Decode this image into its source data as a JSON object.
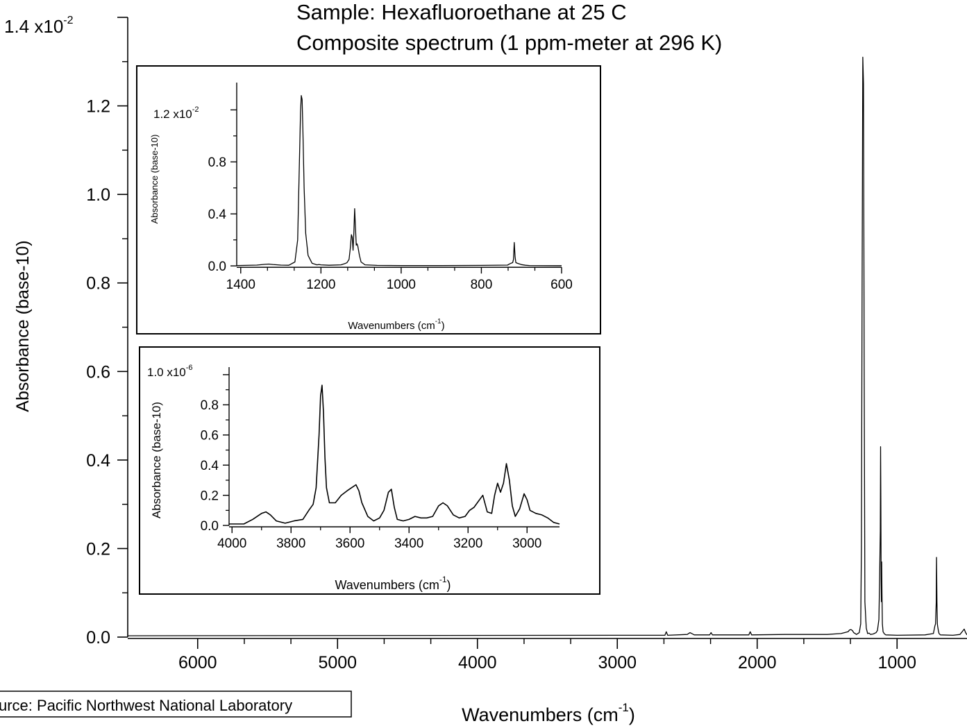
{
  "header": {
    "title_line1": "Sample:  Hexafluoroethane at 25 C",
    "title_line2": "Composite spectrum (1 ppm-meter at 296 K)"
  },
  "source_note": "urce: Pacific Northwest National Laboratory",
  "chart_data": [
    {
      "id": "main",
      "type": "line",
      "xlabel_main": "Wavenumbers (cm",
      "xlabel_sup": "-1",
      "xlabel_close": ")",
      "ylabel": "Absorbance (base-10)",
      "y_multiplier_label": "1.4 x10",
      "y_multiplier_exp": "-2",
      "xlim": [
        6500,
        500
      ],
      "ylim": [
        0,
        0.014
      ],
      "x_ticks": [
        6000,
        5000,
        4000,
        3000,
        2000,
        1000
      ],
      "y_ticks": [
        0.0,
        0.2,
        0.4,
        0.6,
        0.8,
        1.0,
        1.2
      ],
      "y_tick_labels": [
        "0.0",
        "0.2",
        "0.4",
        "0.6",
        "0.8",
        "1.0",
        "1.2"
      ],
      "y_tick_scale": 0.01,
      "series": [
        {
          "x": [
            6500,
            3000,
            2660,
            2650,
            2640,
            2500,
            2480,
            2450,
            2340,
            2330,
            2320,
            2060,
            2050,
            2040,
            1800,
            1500,
            1400,
            1350,
            1340,
            1330,
            1320,
            1310,
            1290,
            1270,
            1260,
            1255,
            1250,
            1245,
            1240,
            1235,
            1230,
            1220,
            1210,
            1200,
            1190,
            1170,
            1150,
            1140,
            1130,
            1125,
            1120,
            1118,
            1116,
            1114,
            1112,
            1110,
            1108,
            1105,
            1100,
            1090,
            1080,
            1000,
            800,
            740,
            730,
            725,
            720,
            718,
            715,
            712,
            710,
            705,
            700,
            690,
            600,
            550,
            520,
            510,
            500
          ],
          "y": [
            3e-05,
            4e-05,
            4e-05,
            0.00012,
            4e-05,
            6e-05,
            0.0001,
            5e-05,
            5e-05,
            0.0001,
            5e-05,
            5e-05,
            0.00012,
            5e-05,
            6e-05,
            6e-05,
            8e-05,
            0.00012,
            0.00016,
            0.00017,
            0.00015,
            0.0001,
            6e-05,
            0.0001,
            0.0003,
            0.002,
            0.008,
            0.0131,
            0.0125,
            0.006,
            0.0008,
            0.0002,
            8e-05,
            9e-05,
            6e-05,
            7e-05,
            0.0001,
            0.00015,
            0.0004,
            0.0013,
            0.0024,
            0.0043,
            0.0031,
            0.0013,
            0.0008,
            0.0017,
            0.001,
            0.0003,
            0.00012,
            7e-05,
            5e-05,
            4e-05,
            5e-05,
            8e-05,
            0.00025,
            0.0003,
            0.0008,
            0.0018,
            0.0008,
            0.0003,
            0.00025,
            0.00015,
            8e-05,
            5e-05,
            4e-05,
            6e-05,
            0.00018,
            0.0001,
            5e-05
          ]
        }
      ]
    },
    {
      "id": "inset-top",
      "type": "line",
      "xlabel_main": "Wavenumbers (cm",
      "xlabel_sup": "-1",
      "xlabel_close": ")",
      "ylabel": "Absorbance (base-10)",
      "y_multiplier_label": "1.2 x10",
      "y_multiplier_exp": "-2",
      "xlim": [
        1410,
        600
      ],
      "ylim": [
        -0.0001,
        0.0141
      ],
      "x_ticks": [
        1400,
        1200,
        1000,
        800,
        600
      ],
      "y_ticks": [
        0.0,
        0.4,
        0.8
      ],
      "y_tick_labels": [
        "0.0",
        "0.4",
        "0.8"
      ],
      "y_tick_scale": 0.01,
      "series": [
        {
          "x": [
            1410,
            1360,
            1340,
            1330,
            1320,
            1300,
            1280,
            1265,
            1258,
            1254,
            1251,
            1249,
            1247,
            1245,
            1242,
            1238,
            1232,
            1222,
            1210,
            1205,
            1200,
            1180,
            1150,
            1140,
            1135,
            1130,
            1127,
            1124,
            1122,
            1120,
            1118,
            1116,
            1114,
            1112,
            1110,
            1108,
            1104,
            1100,
            1090,
            1060,
            1000,
            900,
            800,
            735,
            728,
            722,
            720,
            718,
            716,
            714,
            710,
            700,
            690,
            680,
            600
          ],
          "y": [
            3e-05,
            6e-05,
            0.00012,
            0.00014,
            0.00011,
            6e-05,
            5e-05,
            0.0003,
            0.002,
            0.0075,
            0.0118,
            0.0131,
            0.0128,
            0.0105,
            0.006,
            0.0025,
            0.0008,
            0.0002,
            8e-05,
            0.00011,
            8e-05,
            5e-05,
            8e-05,
            0.00018,
            0.00025,
            0.0005,
            0.0013,
            0.0024,
            0.0022,
            0.0012,
            0.0025,
            0.0044,
            0.003,
            0.0016,
            0.0017,
            0.0015,
            0.0008,
            0.0003,
            8e-05,
            4e-05,
            3e-05,
            3e-05,
            4e-05,
            6e-05,
            0.00018,
            0.00025,
            0.0005,
            0.0018,
            0.0007,
            0.00025,
            0.0002,
            0.0001,
            5e-05,
            3e-05,
            2e-05
          ]
        }
      ]
    },
    {
      "id": "inset-bottom",
      "type": "line",
      "xlabel_main": "Wavenumbers (cm",
      "xlabel_sup": "-1",
      "xlabel_close": ")",
      "ylabel": "Absorbance (base-10)",
      "y_multiplier_label": "1.0 x10",
      "y_multiplier_exp": "-6",
      "xlim": [
        4010,
        2890
      ],
      "ylim": [
        -5e-08,
        1.05e-06
      ],
      "x_ticks": [
        4000,
        3800,
        3600,
        3400,
        3200,
        3000
      ],
      "y_ticks": [
        0.0,
        0.2,
        0.4,
        0.6,
        0.8
      ],
      "y_tick_labels": [
        "0.0",
        "0.2",
        "0.4",
        "0.6",
        "0.8"
      ],
      "y_tick_scale": 1e-06,
      "series": [
        {
          "x": [
            4010,
            3960,
            3930,
            3900,
            3885,
            3870,
            3850,
            3820,
            3790,
            3760,
            3740,
            3725,
            3715,
            3705,
            3700,
            3695,
            3690,
            3685,
            3680,
            3670,
            3650,
            3630,
            3610,
            3595,
            3580,
            3570,
            3560,
            3540,
            3520,
            3500,
            3485,
            3470,
            3460,
            3450,
            3440,
            3420,
            3400,
            3380,
            3360,
            3340,
            3320,
            3300,
            3285,
            3270,
            3250,
            3230,
            3210,
            3195,
            3180,
            3165,
            3150,
            3135,
            3120,
            3110,
            3100,
            3090,
            3080,
            3070,
            3060,
            3050,
            3040,
            3025,
            3010,
            3000,
            2990,
            2970,
            2950,
            2930,
            2910,
            2890
          ],
          "y": [
            1e-08,
            1e-08,
            4e-08,
            8e-08,
            9e-08,
            7e-08,
            3e-08,
            1.5e-08,
            3e-08,
            4e-08,
            1e-07,
            1.4e-07,
            2.5e-07,
            6e-07,
            8.6e-07,
            9.3e-07,
            7.5e-07,
            4.5e-07,
            2.5e-07,
            1.5e-07,
            1.5e-07,
            2e-07,
            2.3e-07,
            2.5e-07,
            2.7e-07,
            2.3e-07,
            1.5e-07,
            6e-08,
            3e-08,
            5e-08,
            1e-07,
            2.2e-07,
            2.4e-07,
            1.2e-07,
            4e-08,
            3e-08,
            4e-08,
            6e-08,
            5e-08,
            5e-08,
            6e-08,
            1.3e-07,
            1.5e-07,
            1.3e-07,
            7e-08,
            5e-08,
            6e-08,
            1e-07,
            1.2e-07,
            1.6e-07,
            2e-07,
            9e-08,
            8e-08,
            2e-07,
            2.8e-07,
            2.2e-07,
            2.8e-07,
            4.1e-07,
            3e-07,
            1.3e-07,
            6e-08,
            1.1e-07,
            2.1e-07,
            1.7e-07,
            1e-07,
            8e-08,
            7e-08,
            5e-08,
            2e-08,
            1e-08
          ]
        }
      ]
    }
  ]
}
